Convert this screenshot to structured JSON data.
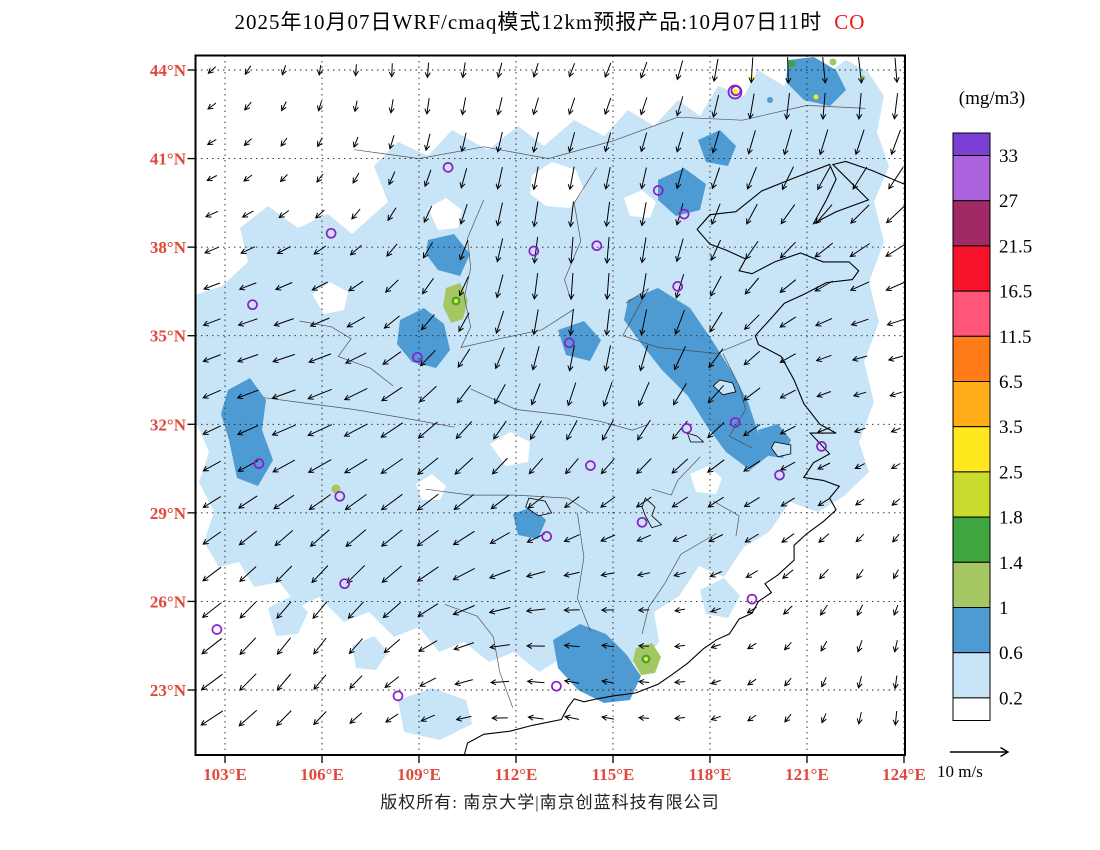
{
  "title": {
    "text": "2025年10月07日WRF/cmaq模式12km预报产品:10月07日11时",
    "pollutant": "CO"
  },
  "axes": {
    "lat": [
      {
        "value": 44,
        "label": "44°N"
      },
      {
        "value": 41,
        "label": "41°N"
      },
      {
        "value": 38,
        "label": "38°N"
      },
      {
        "value": 35,
        "label": "35°N"
      },
      {
        "value": 32,
        "label": "32°N"
      },
      {
        "value": 29,
        "label": "29°N"
      },
      {
        "value": 26,
        "label": "26°N"
      },
      {
        "value": 23,
        "label": "23°N"
      }
    ],
    "lon": [
      {
        "value": 103,
        "label": "103°E"
      },
      {
        "value": 106,
        "label": "106°E"
      },
      {
        "value": 109,
        "label": "109°E"
      },
      {
        "value": 112,
        "label": "112°E"
      },
      {
        "value": 115,
        "label": "115°E"
      },
      {
        "value": 118,
        "label": "118°E"
      },
      {
        "value": 121,
        "label": "121°E"
      },
      {
        "value": 124,
        "label": "124°E"
      }
    ]
  },
  "colorbar": {
    "unit": "(mg/m3)",
    "levels": [
      "33",
      "27",
      "21.5",
      "16.5",
      "11.5",
      "6.5",
      "3.5",
      "2.5",
      "1.8",
      "1.4",
      "1",
      "0.6",
      "0.2"
    ],
    "colors_top_to_bottom": [
      "#7C3FD6",
      "#AC62DC",
      "#A12A66",
      "#F8132B",
      "#FF5578",
      "#FF7C19",
      "#FFAD19",
      "#FFE81E",
      "#C9DC2E",
      "#3FA63F",
      "#A5C763",
      "#4E9BD4",
      "#C8E4F7",
      "#FFFFFF"
    ]
  },
  "wind_legend": {
    "label": "10 m/s"
  },
  "footer": {
    "copyright": "版权所有: 南京大学|南京创蓝科技有限公司"
  },
  "colors": {
    "axis_label_red": "#e0483c",
    "pollutant_red": "#f01818",
    "station_marker_purple": "#8a1fc8"
  },
  "stations": [
    [
      109.9,
      40.7
    ],
    [
      112.55,
      37.87
    ],
    [
      114.5,
      38.05
    ],
    [
      116.4,
      39.92
    ],
    [
      117.2,
      39.12
    ],
    [
      118.8,
      43.3
    ],
    [
      117.0,
      36.67
    ],
    [
      113.65,
      34.76
    ],
    [
      108.95,
      34.27
    ],
    [
      103.85,
      36.05
    ],
    [
      106.28,
      38.47
    ],
    [
      117.28,
      31.86
    ],
    [
      118.78,
      32.06
    ],
    [
      121.45,
      31.25
    ],
    [
      120.15,
      30.28
    ],
    [
      114.3,
      30.6
    ],
    [
      112.95,
      28.2
    ],
    [
      115.9,
      28.68
    ],
    [
      119.3,
      26.08
    ],
    [
      113.25,
      23.13
    ],
    [
      108.35,
      22.8
    ],
    [
      106.7,
      26.6
    ],
    [
      106.55,
      29.56
    ],
    [
      104.05,
      30.67
    ],
    [
      102.75,
      25.05
    ]
  ],
  "chart_data": {
    "type": "heatmap",
    "title": "2025年10月07日WRF/cmaq模式12km预报产品:10月07日11时 CO",
    "pollutant": "CO",
    "unit": "mg/m3",
    "model": "WRF/cmaq 12km",
    "forecast_time_label": "10月07日11时",
    "run_date_label": "2025年10月07日",
    "x_tick_labels": [
      "103°E",
      "106°E",
      "109°E",
      "112°E",
      "115°E",
      "118°E",
      "121°E",
      "124°E"
    ],
    "y_tick_labels": [
      "44°N",
      "41°N",
      "38°N",
      "35°N",
      "32°N",
      "29°N",
      "26°N",
      "23°N"
    ],
    "lon_range": [
      102.1,
      124.0
    ],
    "lat_range": [
      20.8,
      44.5
    ],
    "contour_levels_mg_m3": [
      0.2,
      0.6,
      1,
      1.4,
      1.8,
      2.5,
      3.5,
      6.5,
      11.5,
      16.5,
      21.5,
      27,
      33
    ],
    "palette_low_to_high": [
      "#FFFFFF",
      "#C8E4F7",
      "#4E9BD4",
      "#A5C763",
      "#3FA63F",
      "#C9DC2E",
      "#FFE81E",
      "#FFAD19",
      "#FF7C19",
      "#FF5578",
      "#F8132B",
      "#A12A66",
      "#AC62DC",
      "#7C3FD6"
    ],
    "legend_position": "right",
    "grid": "dotted lat/lon graticule every 3 degrees",
    "wind_reference_ms": 10
  }
}
